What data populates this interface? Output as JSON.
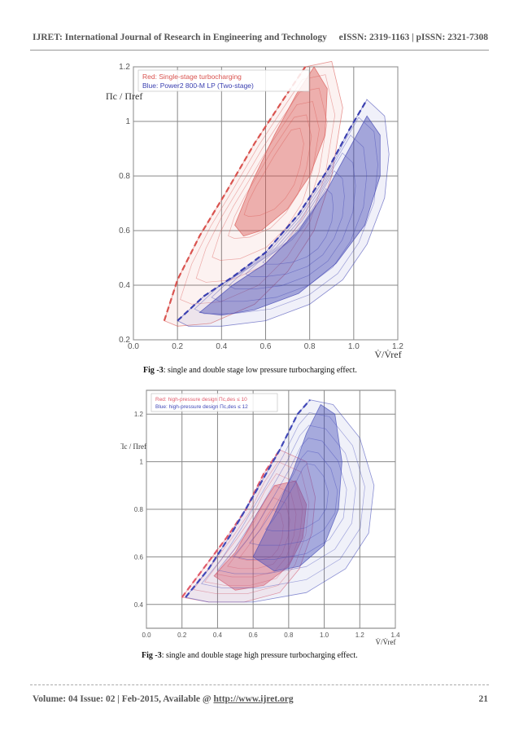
{
  "header": {
    "journal": "IJRET: International Journal of Research in Engineering and Technology",
    "issn": "eISSN: 2319-1163 | pISSN: 2321-7308"
  },
  "figures": [
    {
      "caption_label": "Fig -3",
      "caption_text": ": single and double stage low pressure turbocharging effect."
    },
    {
      "caption_label": "Fig -3",
      "caption_text": ": single and double stage high pressure turbocharging effect."
    }
  ],
  "footer": {
    "volume": "Volume: 04 Issue: 02 | Feb-2015, Available @ ",
    "url": "http://www.ijret.org",
    "page": "21"
  },
  "chart_data": [
    {
      "type": "area",
      "legend_position": "top-left",
      "legend": [
        "Red: Single-stage turbocharging",
        "Blue: Power2 800-M LP (Two-stage)"
      ],
      "ylabel": "Πc / Πref",
      "xlabel": "V̇/V̇ref",
      "xlim": [
        0.0,
        1.2
      ],
      "ylim": [
        0.2,
        1.2
      ],
      "x_ticks": [
        0.0,
        0.2,
        0.4,
        0.6,
        0.8,
        1.0,
        1.2
      ],
      "y_ticks": [
        0.2,
        0.4,
        0.6,
        0.8,
        1.0,
        1.2
      ],
      "grid": true,
      "colors": {
        "red": "#d9534f",
        "blue": "#3a3fb0"
      },
      "series": [
        {
          "name": "Red: Single-stage turbocharging",
          "surge_line": [
            [
              0.14,
              0.27
            ],
            [
              0.2,
              0.42
            ],
            [
              0.3,
              0.58
            ],
            [
              0.42,
              0.74
            ],
            [
              0.55,
              0.92
            ],
            [
              0.68,
              1.08
            ],
            [
              0.78,
              1.2
            ]
          ],
          "map_outline": [
            [
              0.14,
              0.27
            ],
            [
              0.2,
              0.42
            ],
            [
              0.3,
              0.58
            ],
            [
              0.42,
              0.74
            ],
            [
              0.55,
              0.92
            ],
            [
              0.68,
              1.08
            ],
            [
              0.78,
              1.2
            ],
            [
              0.9,
              1.22
            ],
            [
              0.95,
              1.05
            ],
            [
              0.9,
              0.8
            ],
            [
              0.82,
              0.6
            ],
            [
              0.7,
              0.45
            ],
            [
              0.55,
              0.33
            ],
            [
              0.35,
              0.26
            ],
            [
              0.2,
              0.25
            ]
          ],
          "efficiency_island": [
            [
              0.46,
              0.62
            ],
            [
              0.54,
              0.78
            ],
            [
              0.64,
              0.95
            ],
            [
              0.74,
              1.1
            ],
            [
              0.82,
              1.2
            ],
            [
              0.88,
              1.12
            ],
            [
              0.87,
              0.95
            ],
            [
              0.8,
              0.8
            ],
            [
              0.7,
              0.68
            ],
            [
              0.58,
              0.6
            ],
            [
              0.5,
              0.58
            ]
          ]
        },
        {
          "name": "Blue: Power2 800-M LP (Two-stage)",
          "surge_line": [
            [
              0.2,
              0.27
            ],
            [
              0.32,
              0.36
            ],
            [
              0.45,
              0.43
            ],
            [
              0.6,
              0.52
            ],
            [
              0.75,
              0.66
            ],
            [
              0.88,
              0.82
            ],
            [
              0.98,
              0.97
            ],
            [
              1.06,
              1.08
            ]
          ],
          "map_outline": [
            [
              0.2,
              0.27
            ],
            [
              0.32,
              0.36
            ],
            [
              0.45,
              0.43
            ],
            [
              0.6,
              0.52
            ],
            [
              0.75,
              0.66
            ],
            [
              0.88,
              0.82
            ],
            [
              0.98,
              0.97
            ],
            [
              1.06,
              1.08
            ],
            [
              1.14,
              1.02
            ],
            [
              1.16,
              0.88
            ],
            [
              1.14,
              0.72
            ],
            [
              1.06,
              0.55
            ],
            [
              0.95,
              0.42
            ],
            [
              0.8,
              0.33
            ],
            [
              0.6,
              0.27
            ],
            [
              0.4,
              0.25
            ],
            [
              0.25,
              0.25
            ]
          ],
          "efficiency_island": [
            [
              0.3,
              0.3
            ],
            [
              0.45,
              0.4
            ],
            [
              0.6,
              0.48
            ],
            [
              0.75,
              0.6
            ],
            [
              0.88,
              0.75
            ],
            [
              0.98,
              0.9
            ],
            [
              1.06,
              1.02
            ],
            [
              1.12,
              0.95
            ],
            [
              1.12,
              0.8
            ],
            [
              1.05,
              0.62
            ],
            [
              0.92,
              0.48
            ],
            [
              0.75,
              0.37
            ],
            [
              0.55,
              0.31
            ],
            [
              0.4,
              0.29
            ]
          ]
        }
      ]
    },
    {
      "type": "area",
      "legend_position": "top-left",
      "legend": [
        "Red: high-pressure design Πc,des ≤ 10",
        "Blue: high-pressure design Πc,des ≤ 12"
      ],
      "ylabel": "Πc / Πref",
      "xlabel": "V̇/V̇ref",
      "xlim": [
        0.0,
        1.4
      ],
      "ylim": [
        0.3,
        1.3
      ],
      "x_ticks": [
        0.0,
        0.2,
        0.4,
        0.6,
        0.8,
        1.0,
        1.2,
        1.4
      ],
      "y_ticks": [
        0.4,
        0.6,
        0.8,
        1.0,
        1.2
      ],
      "grid": true,
      "colors": {
        "red": "#e05a6a",
        "blue": "#4048b8"
      },
      "series": [
        {
          "name": "Red: high-pressure design Πc,des ≤ 10",
          "surge_line": [
            [
              0.2,
              0.43
            ],
            [
              0.32,
              0.55
            ],
            [
              0.45,
              0.68
            ],
            [
              0.56,
              0.8
            ],
            [
              0.66,
              0.95
            ],
            [
              0.75,
              1.05
            ]
          ],
          "map_outline": [
            [
              0.2,
              0.43
            ],
            [
              0.32,
              0.55
            ],
            [
              0.45,
              0.68
            ],
            [
              0.56,
              0.8
            ],
            [
              0.66,
              0.95
            ],
            [
              0.75,
              1.05
            ],
            [
              0.9,
              1.0
            ],
            [
              0.95,
              0.85
            ],
            [
              0.93,
              0.7
            ],
            [
              0.86,
              0.55
            ],
            [
              0.75,
              0.45
            ],
            [
              0.55,
              0.41
            ],
            [
              0.35,
              0.41
            ]
          ],
          "efficiency_island": [
            [
              0.38,
              0.52
            ],
            [
              0.5,
              0.62
            ],
            [
              0.62,
              0.78
            ],
            [
              0.72,
              0.9
            ],
            [
              0.84,
              0.92
            ],
            [
              0.9,
              0.82
            ],
            [
              0.88,
              0.68
            ],
            [
              0.8,
              0.56
            ],
            [
              0.66,
              0.48
            ],
            [
              0.5,
              0.46
            ]
          ]
        },
        {
          "name": "Blue: high-pressure design Πc,des ≤ 12",
          "surge_line": [
            [
              0.22,
              0.43
            ],
            [
              0.35,
              0.55
            ],
            [
              0.48,
              0.7
            ],
            [
              0.62,
              0.88
            ],
            [
              0.75,
              1.05
            ],
            [
              0.85,
              1.2
            ],
            [
              0.92,
              1.26
            ]
          ],
          "map_outline": [
            [
              0.22,
              0.43
            ],
            [
              0.35,
              0.55
            ],
            [
              0.48,
              0.7
            ],
            [
              0.62,
              0.88
            ],
            [
              0.75,
              1.05
            ],
            [
              0.85,
              1.2
            ],
            [
              0.92,
              1.26
            ],
            [
              1.05,
              1.24
            ],
            [
              1.2,
              1.1
            ],
            [
              1.28,
              0.9
            ],
            [
              1.25,
              0.7
            ],
            [
              1.12,
              0.55
            ],
            [
              0.9,
              0.45
            ],
            [
              0.6,
              0.41
            ],
            [
              0.35,
              0.41
            ]
          ],
          "efficiency_island": [
            [
              0.6,
              0.6
            ],
            [
              0.72,
              0.78
            ],
            [
              0.82,
              0.95
            ],
            [
              0.9,
              1.12
            ],
            [
              0.98,
              1.24
            ],
            [
              1.06,
              1.2
            ],
            [
              1.1,
              1.0
            ],
            [
              1.08,
              0.8
            ],
            [
              1.0,
              0.65
            ],
            [
              0.86,
              0.56
            ],
            [
              0.72,
              0.54
            ]
          ]
        }
      ]
    }
  ]
}
